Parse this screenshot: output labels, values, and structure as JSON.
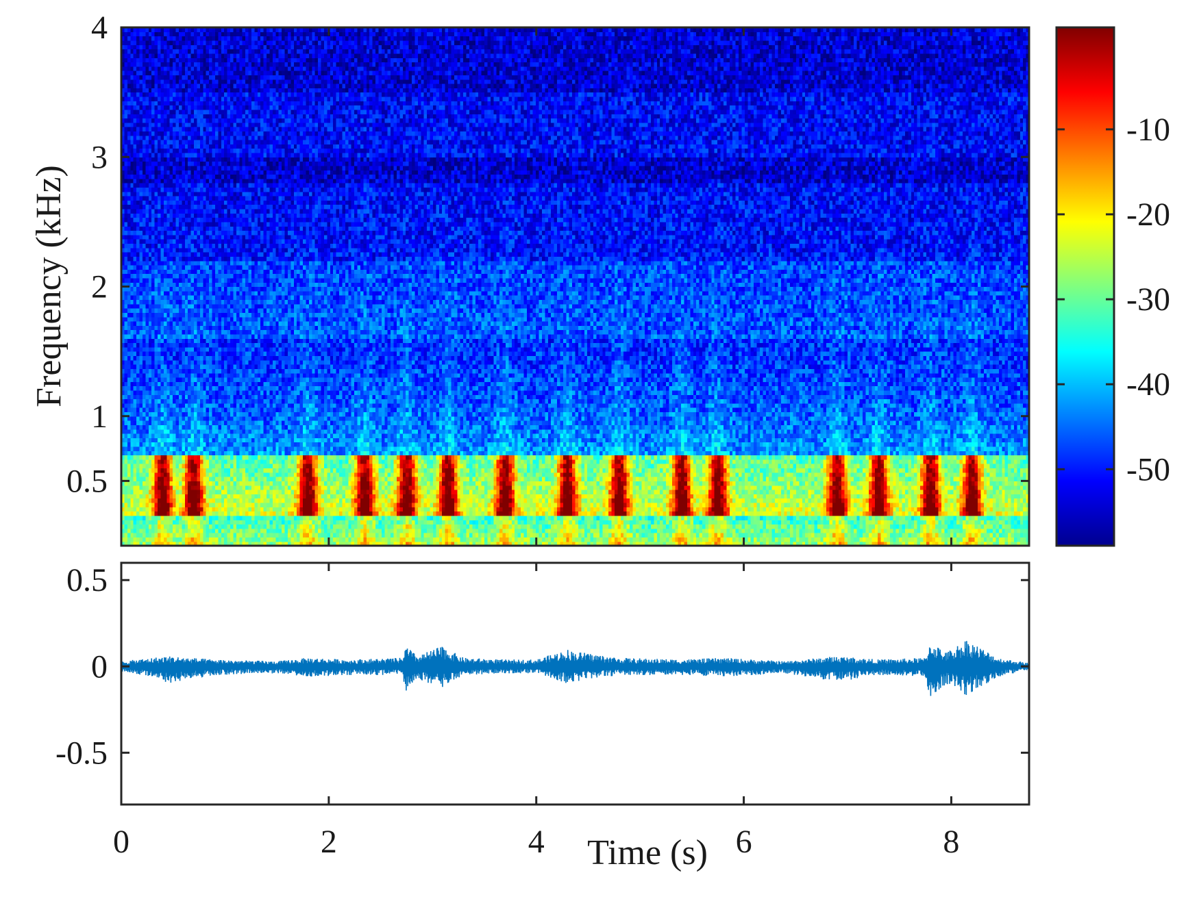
{
  "chart_data": [
    {
      "type": "heatmap",
      "subtype": "spectrogram",
      "title": "",
      "ylabel": "Frequency (kHz)",
      "xlim": [
        0,
        8.75
      ],
      "ylim": [
        0,
        4
      ],
      "yticks": [
        0.5,
        1,
        2,
        3,
        4
      ],
      "ytick_labels": [
        "0.5",
        "1",
        "2",
        "3",
        "4"
      ],
      "xticks": [
        0,
        2,
        4,
        6,
        8
      ],
      "colormap": "jet",
      "colorbar": {
        "clim": [
          -59,
          2
        ],
        "ticks": [
          -10,
          -20,
          -30,
          -40,
          -50
        ],
        "tick_labels": [
          "-10",
          "-20",
          "-30",
          "-40",
          "-50"
        ]
      },
      "energy_bursts_s": [
        0.4,
        0.7,
        1.8,
        2.35,
        2.75,
        3.15,
        3.7,
        4.3,
        4.8,
        5.4,
        5.75,
        6.9,
        7.3,
        7.8,
        8.2
      ],
      "dominant_band_khz": [
        0.25,
        0.7
      ],
      "grid": false
    },
    {
      "type": "line",
      "subtype": "waveform",
      "xlabel": "Time (s)",
      "ylabel": "",
      "xlim": [
        0,
        8.75
      ],
      "ylim": [
        -0.8,
        0.6
      ],
      "xticks": [
        0,
        2,
        4,
        6,
        8
      ],
      "xtick_labels": [
        "0",
        "2",
        "4",
        "6",
        "8"
      ],
      "yticks": [
        0.5,
        0,
        -0.5
      ],
      "ytick_labels": [
        "0.5",
        "0",
        "-0.5"
      ],
      "series": [
        {
          "color": "#0072bd",
          "envelope": {
            "t": [
              0,
              0.3,
              0.45,
              0.9,
              1.5,
              1.8,
              2.2,
              2.7,
              2.75,
              2.85,
              3.1,
              3.15,
              3.3,
              3.7,
              4.0,
              4.3,
              4.35,
              4.8,
              5.4,
              5.8,
              6.4,
              6.9,
              7.3,
              7.75,
              7.8,
              7.95,
              8.15,
              8.2,
              8.45,
              8.75
            ],
            "upper": [
              0.03,
              0.05,
              0.06,
              0.04,
              0.03,
              0.05,
              0.04,
              0.05,
              0.12,
              0.06,
              0.12,
              0.1,
              0.05,
              0.04,
              0.04,
              0.1,
              0.09,
              0.05,
              0.04,
              0.05,
              0.03,
              0.06,
              0.04,
              0.05,
              0.15,
              0.08,
              0.16,
              0.14,
              0.05,
              0.02
            ],
            "lower": [
              -0.03,
              -0.06,
              -0.1,
              -0.05,
              -0.04,
              -0.06,
              -0.05,
              -0.05,
              -0.16,
              -0.07,
              -0.13,
              -0.1,
              -0.05,
              -0.04,
              -0.04,
              -0.1,
              -0.09,
              -0.05,
              -0.05,
              -0.06,
              -0.04,
              -0.09,
              -0.05,
              -0.06,
              -0.2,
              -0.1,
              -0.17,
              -0.15,
              -0.06,
              -0.02
            ]
          }
        }
      ]
    }
  ]
}
